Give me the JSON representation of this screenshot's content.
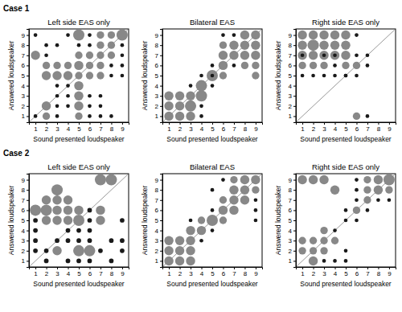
{
  "chart_data": [
    {
      "type": "scatter",
      "title": "Left side EAS only",
      "x_label": "Sound presented loudspeaker",
      "y_label": "Answered loudspeaker",
      "annotations": [
        {
          "text": "Case 1"
        }
      ],
      "xlim": [
        0.4,
        9.6
      ],
      "ylim": [
        0.4,
        9.6
      ],
      "xticks": [
        1,
        2,
        3,
        4,
        5,
        6,
        7,
        8,
        9
      ],
      "yticks": [
        1,
        2,
        3,
        4,
        5,
        6,
        7,
        8,
        9
      ],
      "x": [
        1,
        1,
        1,
        2,
        2,
        2,
        2,
        2,
        2,
        3,
        3,
        3,
        3,
        3,
        3,
        3,
        4,
        4,
        4,
        4,
        4,
        4,
        5,
        5,
        5,
        5,
        5,
        5,
        5,
        5,
        5,
        6,
        6,
        6,
        6,
        6,
        6,
        6,
        6,
        7,
        7,
        7,
        7,
        7,
        7,
        7,
        7,
        8,
        8,
        8,
        8,
        8,
        8,
        9,
        9,
        9,
        9,
        9
      ],
      "values": [
        1,
        7,
        9,
        1,
        2,
        5,
        6,
        7,
        8,
        1,
        2,
        3,
        4,
        5,
        6,
        8,
        2,
        3,
        4,
        5,
        6,
        9,
        1,
        2,
        3,
        4,
        5,
        6,
        7,
        8,
        9,
        1,
        2,
        3,
        5,
        6,
        7,
        8,
        9,
        1,
        2,
        3,
        5,
        6,
        7,
        8,
        9,
        1,
        5,
        6,
        7,
        8,
        9,
        5,
        6,
        7,
        8,
        9
      ],
      "sizes": [
        1,
        6,
        1,
        4,
        6,
        6,
        4,
        1,
        1,
        1,
        1,
        1,
        1,
        6,
        4,
        1,
        1,
        1,
        1,
        6,
        4,
        1,
        4,
        6,
        6,
        6,
        4,
        6,
        4,
        1,
        9,
        1,
        1,
        1,
        4,
        4,
        4,
        1,
        1,
        1,
        1,
        1,
        4,
        4,
        4,
        4,
        4,
        1,
        1,
        1,
        4,
        4,
        4,
        1,
        1,
        1,
        1,
        9
      ],
      "colors": [
        "#1a1a1a",
        "#888888",
        "#1a1a1a",
        "#888888",
        "#888888",
        "#888888",
        "#888888",
        "#1a1a1a",
        "#1a1a1a",
        "#1a1a1a",
        "#1a1a1a",
        "#1a1a1a",
        "#1a1a1a",
        "#888888",
        "#888888",
        "#1a1a1a",
        "#1a1a1a",
        "#1a1a1a",
        "#1a1a1a",
        "#888888",
        "#888888",
        "#1a1a1a",
        "#888888",
        "#888888",
        "#888888",
        "#888888",
        "#888888",
        "#888888",
        "#888888",
        "#1a1a1a",
        "#888888",
        "#1a1a1a",
        "#1a1a1a",
        "#1a1a1a",
        "#888888",
        "#888888",
        "#888888",
        "#1a1a1a",
        "#1a1a1a",
        "#1a1a1a",
        "#1a1a1a",
        "#1a1a1a",
        "#888888",
        "#888888",
        "#888888",
        "#888888",
        "#888888",
        "#1a1a1a",
        "#1a1a1a",
        "#1a1a1a",
        "#888888",
        "#888888",
        "#888888",
        "#1a1a1a",
        "#1a1a1a",
        "#1a1a1a",
        "#1a1a1a",
        "#888888"
      ],
      "diagonal": {
        "x": [
          0.5,
          9.5
        ],
        "values": [
          0.5,
          9.5
        ],
        "color": "#999999"
      }
    },
    {
      "type": "scatter",
      "title": "Bilateral EAS",
      "x_label": "Sound presented loudspeaker",
      "y_label": "Answered loudspeaker",
      "xlim": [
        0.4,
        9.6
      ],
      "ylim": [
        0.4,
        9.6
      ],
      "xticks": [
        1,
        2,
        3,
        4,
        5,
        6,
        7,
        8,
        9
      ],
      "yticks": [
        1,
        2,
        3,
        4,
        5,
        6,
        7,
        8,
        9
      ],
      "x": [
        1,
        1,
        1,
        2,
        2,
        2,
        3,
        3,
        3,
        3,
        4,
        4,
        4,
        4,
        5,
        5,
        5,
        6,
        6,
        6,
        6,
        7,
        7,
        7,
        8,
        8,
        8,
        8,
        9,
        9,
        9,
        9,
        4,
        5,
        6,
        7,
        9
      ],
      "values": [
        1,
        2,
        3,
        1,
        2,
        3,
        1,
        2,
        3,
        4,
        1,
        3,
        4,
        5,
        4,
        5,
        6,
        5,
        6,
        7,
        8,
        6,
        7,
        8,
        6,
        7,
        8,
        9,
        6,
        7,
        8,
        9,
        2,
        5,
        9,
        9,
        5
      ],
      "sizes": [
        6,
        6,
        6,
        6,
        6,
        6,
        6,
        9,
        6,
        1,
        1,
        9,
        9,
        1,
        1,
        9,
        1,
        4,
        6,
        6,
        4,
        1,
        6,
        6,
        4,
        6,
        6,
        6,
        4,
        6,
        6,
        6,
        1,
        1,
        1,
        1,
        4
      ],
      "colors": [
        "#888888",
        "#888888",
        "#888888",
        "#888888",
        "#888888",
        "#888888",
        "#888888",
        "#888888",
        "#888888",
        "#1a1a1a",
        "#1a1a1a",
        "#888888",
        "#888888",
        "#1a1a1a",
        "#1a1a1a",
        "#888888",
        "#1a1a1a",
        "#888888",
        "#888888",
        "#888888",
        "#888888",
        "#1a1a1a",
        "#888888",
        "#888888",
        "#888888",
        "#888888",
        "#888888",
        "#888888",
        "#888888",
        "#888888",
        "#888888",
        "#888888",
        "#1a1a1a",
        "#1a1a1a",
        "#1a1a1a",
        "#1a1a1a",
        "#888888"
      ],
      "diagonal": {
        "x": [
          0.5,
          9.5
        ],
        "values": [
          0.5,
          9.5
        ],
        "color": "#999999"
      }
    },
    {
      "type": "scatter",
      "title": "Right side EAS only",
      "x_label": "Sound presented loudspeaker",
      "y_label": "Answered loudspeaker",
      "xlim": [
        0.4,
        9.6
      ],
      "ylim": [
        0.4,
        9.6
      ],
      "xticks": [
        1,
        2,
        3,
        4,
        5,
        6,
        7,
        8,
        9
      ],
      "yticks": [
        1,
        2,
        3,
        4,
        5,
        6,
        7,
        8,
        9
      ],
      "x": [
        1,
        1,
        1,
        1,
        1,
        2,
        2,
        2,
        2,
        2,
        3,
        3,
        3,
        3,
        3,
        4,
        4,
        4,
        4,
        4,
        5,
        5,
        5,
        5,
        5,
        6,
        6,
        6,
        6,
        7,
        7,
        7,
        1,
        2,
        3,
        4,
        5,
        6
      ],
      "values": [
        5,
        6,
        7,
        8,
        9,
        5,
        6,
        7,
        8,
        9,
        5,
        6,
        7,
        8,
        9,
        5,
        6,
        7,
        8,
        9,
        5,
        6,
        7,
        8,
        9,
        1,
        6,
        7,
        9,
        1,
        6,
        7,
        7,
        7,
        7,
        7,
        5,
        5
      ],
      "sizes": [
        1,
        4,
        6,
        6,
        6,
        1,
        4,
        6,
        9,
        6,
        1,
        4,
        6,
        6,
        6,
        1,
        1,
        6,
        6,
        6,
        1,
        4,
        6,
        6,
        6,
        4,
        4,
        1,
        1,
        1,
        1,
        1,
        1,
        4,
        1,
        1,
        1,
        1
      ],
      "colors": [
        "#1a1a1a",
        "#888888",
        "#888888",
        "#888888",
        "#888888",
        "#1a1a1a",
        "#888888",
        "#888888",
        "#888888",
        "#888888",
        "#1a1a1a",
        "#888888",
        "#888888",
        "#888888",
        "#888888",
        "#1a1a1a",
        "#1a1a1a",
        "#888888",
        "#888888",
        "#888888",
        "#1a1a1a",
        "#888888",
        "#888888",
        "#888888",
        "#888888",
        "#888888",
        "#888888",
        "#1a1a1a",
        "#1a1a1a",
        "#1a1a1a",
        "#1a1a1a",
        "#1a1a1a",
        "#1a1a1a",
        "#888888",
        "#1a1a1a",
        "#1a1a1a",
        "#1a1a1a",
        "#1a1a1a"
      ],
      "diagonal": {
        "x": [
          0.5,
          9.5
        ],
        "values": [
          0.5,
          9.5
        ],
        "color": "#999999"
      }
    },
    {
      "type": "scatter",
      "title": "Left side EAS only",
      "x_label": "Sound presented loudspeaker",
      "y_label": "Answered loudspeaker",
      "annotations": [
        {
          "text": "Case 2"
        }
      ],
      "xlim": [
        0.4,
        9.6
      ],
      "ylim": [
        0.4,
        9.6
      ],
      "xticks": [
        1,
        2,
        3,
        4,
        5,
        6,
        7,
        8,
        9
      ],
      "yticks": [
        1,
        2,
        3,
        4,
        5,
        6,
        7,
        8,
        9
      ],
      "x": [
        1,
        1,
        1,
        1,
        1,
        2,
        2,
        2,
        2,
        2,
        3,
        3,
        3,
        3,
        3,
        3,
        4,
        4,
        4,
        4,
        4,
        4,
        5,
        5,
        5,
        5,
        5,
        5,
        6,
        6,
        6,
        6,
        6,
        6,
        7,
        7,
        7,
        7,
        8,
        8,
        8,
        9,
        9,
        9
      ],
      "values": [
        2,
        3,
        4,
        5,
        6,
        1,
        2,
        5,
        6,
        7,
        2,
        3,
        5,
        6,
        7,
        8,
        1,
        3,
        4,
        5,
        6,
        7,
        1,
        2,
        3,
        4,
        5,
        6,
        1,
        2,
        3,
        4,
        5,
        6,
        2,
        5,
        6,
        9,
        1,
        3,
        9,
        2,
        3,
        5
      ],
      "sizes": [
        1,
        1,
        1,
        1,
        6,
        1,
        1,
        4,
        6,
        4,
        4,
        1,
        4,
        4,
        4,
        6,
        1,
        1,
        1,
        4,
        4,
        4,
        1,
        6,
        1,
        1,
        6,
        4,
        1,
        6,
        1,
        1,
        1,
        1,
        1,
        4,
        4,
        6,
        1,
        1,
        6,
        1,
        1,
        1
      ],
      "colors": [
        "#1a1a1a",
        "#1a1a1a",
        "#1a1a1a",
        "#1a1a1a",
        "#888888",
        "#1a1a1a",
        "#1a1a1a",
        "#888888",
        "#888888",
        "#888888",
        "#888888",
        "#1a1a1a",
        "#888888",
        "#888888",
        "#888888",
        "#888888",
        "#1a1a1a",
        "#1a1a1a",
        "#1a1a1a",
        "#888888",
        "#888888",
        "#888888",
        "#1a1a1a",
        "#888888",
        "#1a1a1a",
        "#1a1a1a",
        "#888888",
        "#888888",
        "#1a1a1a",
        "#888888",
        "#1a1a1a",
        "#1a1a1a",
        "#1a1a1a",
        "#1a1a1a",
        "#1a1a1a",
        "#888888",
        "#888888",
        "#888888",
        "#1a1a1a",
        "#1a1a1a",
        "#888888",
        "#1a1a1a",
        "#1a1a1a",
        "#1a1a1a"
      ],
      "diagonal": {
        "x": [
          0.5,
          9.5
        ],
        "values": [
          0.5,
          9.5
        ],
        "color": "#999999"
      }
    },
    {
      "type": "scatter",
      "title": "Bilateral EAS",
      "x_label": "Sound presented loudspeaker",
      "y_label": "Answered loudspeaker",
      "xlim": [
        0.4,
        9.6
      ],
      "ylim": [
        0.4,
        9.6
      ],
      "xticks": [
        1,
        2,
        3,
        4,
        5,
        6,
        7,
        8,
        9
      ],
      "yticks": [
        1,
        2,
        3,
        4,
        5,
        6,
        7,
        8,
        9
      ],
      "x": [
        1,
        1,
        1,
        2,
        2,
        2,
        3,
        3,
        3,
        3,
        4,
        4,
        4,
        5,
        5,
        5,
        6,
        6,
        6,
        7,
        7,
        7,
        7,
        8,
        8,
        8,
        9,
        9,
        3,
        5,
        6,
        9,
        9,
        9
      ],
      "values": [
        1,
        2,
        3,
        1,
        2,
        3,
        1,
        2,
        3,
        4,
        3,
        4,
        5,
        4,
        5,
        6,
        5,
        6,
        7,
        6,
        7,
        8,
        9,
        7,
        8,
        9,
        8,
        9,
        5,
        8,
        9,
        5,
        6,
        7
      ],
      "sizes": [
        6,
        6,
        6,
        6,
        6,
        6,
        6,
        6,
        6,
        6,
        1,
        6,
        4,
        1,
        9,
        1,
        4,
        6,
        4,
        6,
        6,
        6,
        4,
        6,
        6,
        6,
        4,
        6,
        1,
        1,
        1,
        1,
        1,
        1
      ],
      "colors": [
        "#888888",
        "#888888",
        "#888888",
        "#888888",
        "#888888",
        "#888888",
        "#888888",
        "#888888",
        "#888888",
        "#888888",
        "#1a1a1a",
        "#888888",
        "#888888",
        "#1a1a1a",
        "#888888",
        "#1a1a1a",
        "#888888",
        "#888888",
        "#888888",
        "#888888",
        "#888888",
        "#888888",
        "#888888",
        "#888888",
        "#888888",
        "#888888",
        "#888888",
        "#888888",
        "#1a1a1a",
        "#1a1a1a",
        "#1a1a1a",
        "#1a1a1a",
        "#1a1a1a",
        "#1a1a1a"
      ],
      "diagonal": {
        "x": [
          0.5,
          9.5
        ],
        "values": [
          0.5,
          9.5
        ],
        "color": "#999999"
      }
    },
    {
      "type": "scatter",
      "title": "Right side EAS only",
      "x_label": "Sound presented loudspeaker",
      "y_label": "Answered loudspeaker",
      "xlim": [
        0.4,
        9.6
      ],
      "ylim": [
        0.4,
        9.6
      ],
      "xticks": [
        1,
        2,
        3,
        4,
        5,
        6,
        7,
        8,
        9
      ],
      "yticks": [
        1,
        2,
        3,
        4,
        5,
        6,
        7,
        8,
        9
      ],
      "x": [
        1,
        1,
        1,
        2,
        2,
        2,
        2,
        3,
        3,
        3,
        3,
        3,
        4,
        4,
        4,
        4,
        5,
        5,
        5,
        5,
        6,
        6,
        6,
        6,
        6,
        7,
        7,
        7,
        7,
        8,
        8,
        8,
        9,
        9,
        9
      ],
      "values": [
        9,
        3,
        2,
        1,
        2,
        3,
        9,
        1,
        2,
        3,
        4,
        9,
        1,
        3,
        4,
        8,
        1,
        2,
        5,
        6,
        5,
        6,
        7,
        8,
        9,
        6,
        7,
        8,
        9,
        7,
        8,
        9,
        7,
        8,
        9
      ],
      "sizes": [
        6,
        4,
        4,
        6,
        4,
        4,
        6,
        1,
        4,
        4,
        4,
        6,
        1,
        4,
        1,
        6,
        1,
        1,
        1,
        1,
        1,
        4,
        1,
        1,
        1,
        1,
        4,
        4,
        4,
        1,
        6,
        6,
        1,
        4,
        9
      ],
      "colors": [
        "#888888",
        "#888888",
        "#888888",
        "#888888",
        "#888888",
        "#888888",
        "#888888",
        "#1a1a1a",
        "#888888",
        "#888888",
        "#888888",
        "#888888",
        "#1a1a1a",
        "#888888",
        "#1a1a1a",
        "#888888",
        "#1a1a1a",
        "#1a1a1a",
        "#1a1a1a",
        "#1a1a1a",
        "#1a1a1a",
        "#888888",
        "#1a1a1a",
        "#1a1a1a",
        "#1a1a1a",
        "#1a1a1a",
        "#888888",
        "#888888",
        "#888888",
        "#1a1a1a",
        "#888888",
        "#888888",
        "#1a1a1a",
        "#888888",
        "#888888"
      ],
      "diagonal": {
        "x": [
          0.5,
          9.5
        ],
        "values": [
          0.5,
          9.5
        ],
        "color": "#999999"
      }
    }
  ]
}
